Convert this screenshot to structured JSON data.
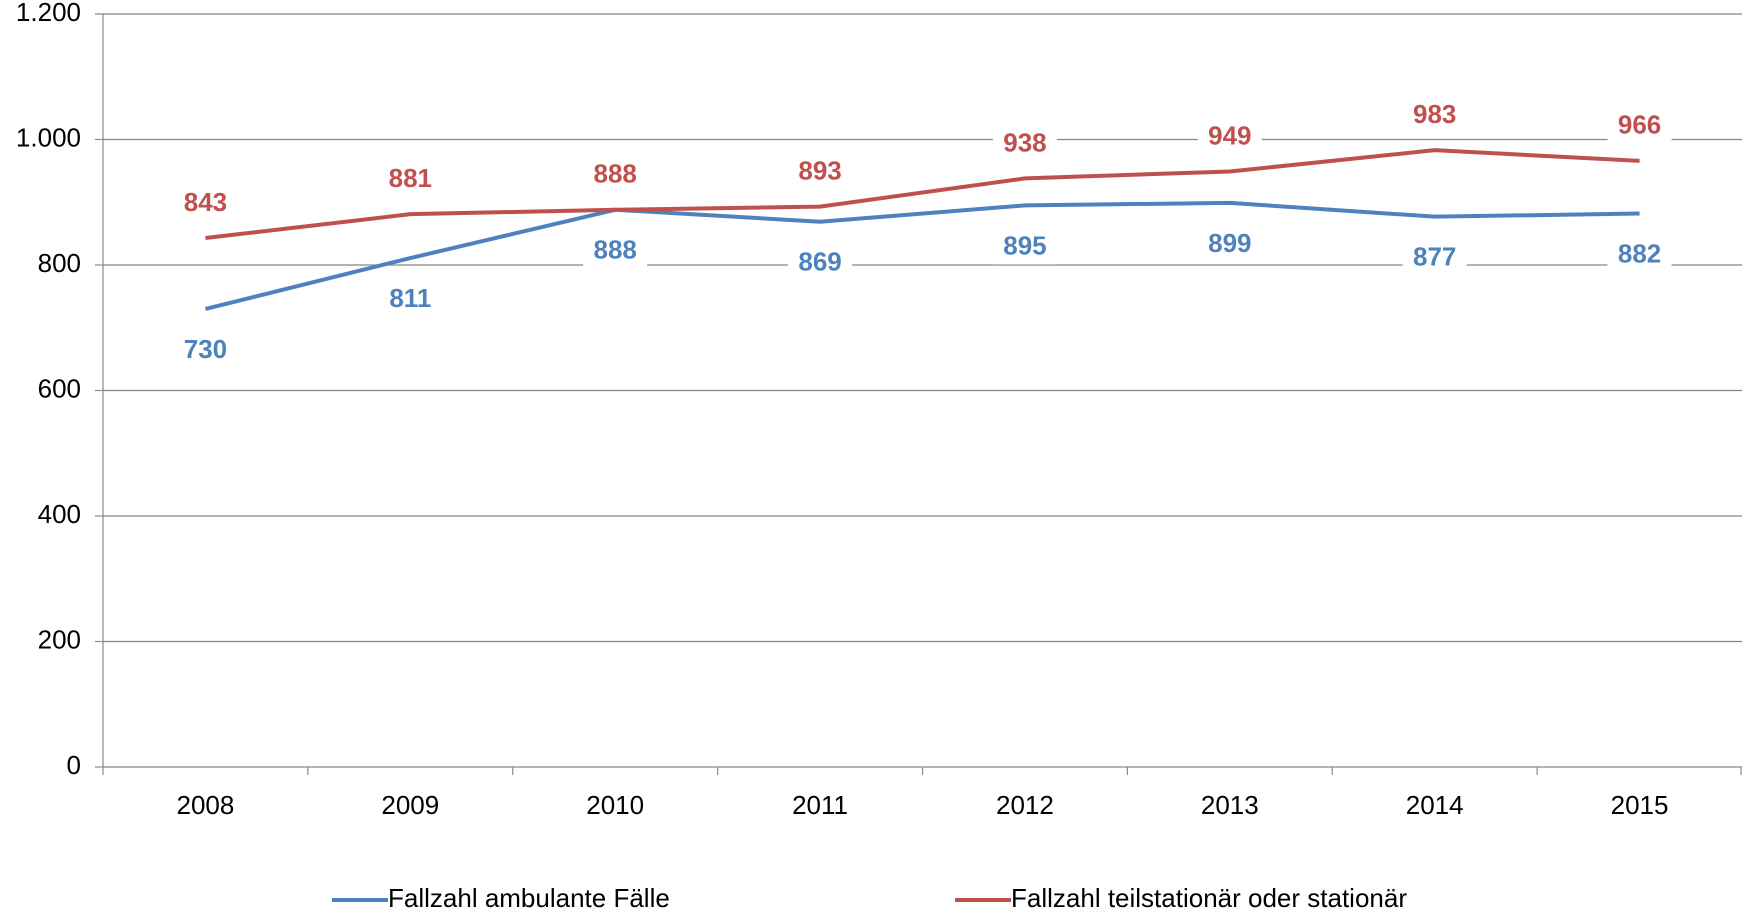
{
  "chart_data": {
    "type": "line",
    "categories": [
      "2008",
      "2009",
      "2010",
      "2011",
      "2012",
      "2013",
      "2014",
      "2015"
    ],
    "series": [
      {
        "name": "Fallzahl ambulante Fälle",
        "color": "#4f81bd",
        "values": [
          730,
          811,
          888,
          869,
          895,
          899,
          877,
          882
        ]
      },
      {
        "name": "Fallzahl teilstationär oder stationär",
        "color": "#c0504d",
        "values": [
          843,
          881,
          888,
          893,
          938,
          949,
          983,
          966
        ]
      }
    ],
    "ylim": [
      0,
      1200
    ],
    "yticks": [
      0,
      200,
      400,
      600,
      800,
      {
        "value": 1000,
        "label": "1.000"
      },
      {
        "value": 1200,
        "label": "1.200"
      }
    ],
    "grid": true,
    "legend": "bottom"
  }
}
